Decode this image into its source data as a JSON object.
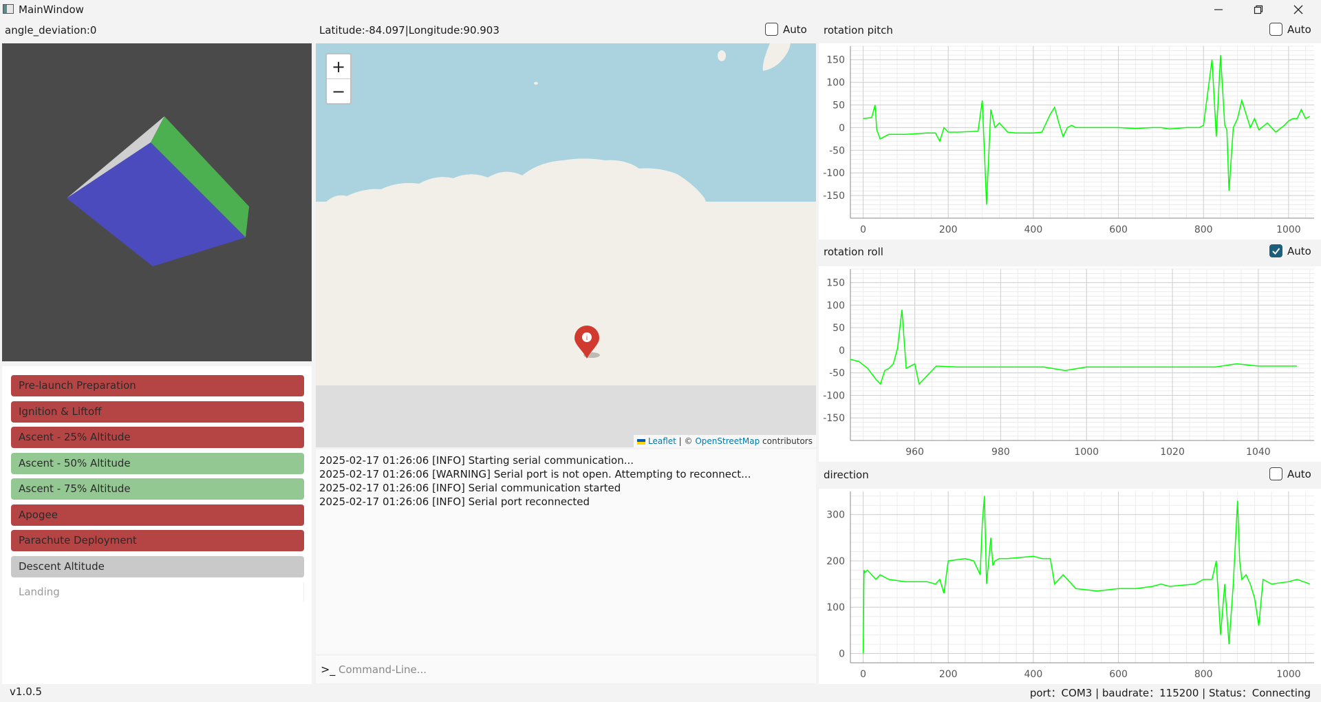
{
  "window": {
    "title": "MainWindow",
    "icon": "app-window-icon"
  },
  "left": {
    "angle_label": "angle_deviation:0",
    "cube_colors": {
      "front": "#4b4bbd",
      "right": "#4caf50",
      "top": "#cfcfcf"
    },
    "stages": [
      {
        "label": "Pre-launch Preparation",
        "state": "red"
      },
      {
        "label": "Ignition & Liftoff",
        "state": "red"
      },
      {
        "label": "Ascent - 25% Altitude",
        "state": "red"
      },
      {
        "label": "Ascent - 50% Altitude",
        "state": "green"
      },
      {
        "label": "Ascent - 75% Altitude",
        "state": "green"
      },
      {
        "label": "Apogee",
        "state": "red"
      },
      {
        "label": "Parachute Deployment",
        "state": "red"
      },
      {
        "label": "Descent Altitude",
        "state": "gray"
      },
      {
        "label": "Landing",
        "state": "none"
      }
    ]
  },
  "middle": {
    "coords": "Latitude:-84.097|Longitude:90.903",
    "auto_label": "Auto",
    "auto_checked": false,
    "zoom_in": "+",
    "zoom_out": "−",
    "attribution": {
      "leaflet": "Leaflet",
      "sep": " | © ",
      "osm": "OpenStreetMap",
      "tail": " contributors"
    },
    "logs": [
      "2025-02-17 01:26:06 [INFO] Starting serial communication...",
      "2025-02-17 01:26:06 [WARNING] Serial port is not open. Attempting to reconnect...",
      "2025-02-17 01:26:06 [INFO] Serial communication started",
      "2025-02-17 01:26:06 [INFO] Serial port reconnected"
    ],
    "cmd_prompt": ">_",
    "cmd_placeholder": "Command-Line..."
  },
  "charts_meta": [
    {
      "title": "rotation pitch",
      "auto_label": "Auto",
      "auto_checked": false
    },
    {
      "title": "rotation roll",
      "auto_label": "Auto",
      "auto_checked": true
    },
    {
      "title": "direction",
      "auto_label": "Auto",
      "auto_checked": false
    }
  ],
  "chart_data": [
    {
      "type": "line",
      "title": "rotation pitch",
      "xlim": [
        -30,
        1060
      ],
      "ylim": [
        -200,
        180
      ],
      "xticks": [
        0,
        200,
        400,
        600,
        800,
        1000
      ],
      "yticks": [
        150,
        100,
        50,
        0,
        -50,
        -100,
        -150
      ],
      "series": [
        {
          "color": "#00ff00",
          "x": [
            0,
            20,
            28,
            32,
            40,
            60,
            100,
            150,
            170,
            180,
            190,
            200,
            220,
            270,
            280,
            290,
            300,
            310,
            320,
            340,
            360,
            380,
            400,
            420,
            440,
            450,
            460,
            470,
            480,
            490,
            500,
            520,
            560,
            600,
            640,
            680,
            700,
            720,
            760,
            790,
            800,
            820,
            830,
            840,
            850,
            855,
            860,
            870,
            880,
            890,
            900,
            910,
            920,
            930,
            950,
            970,
            990,
            1000,
            1010,
            1020,
            1030,
            1040,
            1050
          ],
          "y": [
            20,
            22,
            50,
            -5,
            -25,
            -15,
            -15,
            -12,
            -12,
            -30,
            0,
            -10,
            -10,
            -8,
            60,
            -170,
            40,
            0,
            10,
            -10,
            -12,
            -12,
            -12,
            -10,
            30,
            45,
            10,
            -20,
            0,
            5,
            0,
            0,
            0,
            0,
            -2,
            0,
            0,
            -3,
            0,
            0,
            5,
            150,
            -20,
            160,
            5,
            -5,
            -140,
            0,
            20,
            60,
            30,
            0,
            20,
            -5,
            10,
            -10,
            5,
            15,
            20,
            20,
            40,
            20,
            25
          ]
        }
      ]
    },
    {
      "type": "line",
      "title": "rotation roll",
      "xlim": [
        945,
        1053
      ],
      "ylim": [
        -200,
        180
      ],
      "xticks": [
        960,
        980,
        1000,
        1020,
        1040
      ],
      "yticks": [
        150,
        100,
        50,
        0,
        -50,
        -100,
        -150
      ],
      "series": [
        {
          "color": "#00ff00",
          "x": [
            945,
            947,
            949,
            951,
            952,
            953,
            954,
            955,
            956,
            957,
            958,
            959,
            960,
            961,
            965,
            970,
            980,
            990,
            995,
            1000,
            1010,
            1020,
            1030,
            1035,
            1040,
            1049
          ],
          "y": [
            -20,
            -25,
            -40,
            -65,
            -75,
            -45,
            -40,
            -30,
            5,
            90,
            -40,
            -35,
            -30,
            -75,
            -35,
            -37,
            -37,
            -37,
            -45,
            -37,
            -37,
            -37,
            -37,
            -30,
            -35,
            -35
          ]
        }
      ]
    },
    {
      "type": "line",
      "title": "direction",
      "xlim": [
        -30,
        1060
      ],
      "ylim": [
        -20,
        350
      ],
      "xticks": [
        0,
        200,
        400,
        600,
        800,
        1000
      ],
      "yticks": [
        300,
        200,
        100,
        0
      ],
      "series": [
        {
          "color": "#00ff00",
          "x": [
            0,
            2,
            4,
            10,
            30,
            40,
            60,
            100,
            150,
            170,
            180,
            190,
            200,
            240,
            260,
            275,
            280,
            285,
            290,
            300,
            305,
            310,
            320,
            340,
            400,
            420,
            440,
            450,
            460,
            470,
            480,
            500,
            550,
            600,
            640,
            680,
            700,
            720,
            780,
            800,
            820,
            830,
            840,
            850,
            860,
            870,
            880,
            885,
            890,
            900,
            910,
            920,
            930,
            940,
            960,
            1000,
            1020,
            1050
          ],
          "y": [
            0,
            180,
            175,
            180,
            160,
            170,
            160,
            155,
            155,
            150,
            160,
            130,
            200,
            205,
            200,
            170,
            280,
            340,
            150,
            250,
            190,
            200,
            205,
            205,
            210,
            205,
            205,
            150,
            160,
            170,
            160,
            140,
            135,
            140,
            140,
            145,
            150,
            145,
            150,
            160,
            160,
            200,
            40,
            150,
            20,
            150,
            330,
            200,
            160,
            170,
            150,
            120,
            60,
            160,
            150,
            155,
            160,
            150
          ]
        }
      ]
    }
  ],
  "statusbar": {
    "version": "v1.0.5",
    "status": "port：COM3 | baudrate：115200 | Status：Connecting"
  }
}
